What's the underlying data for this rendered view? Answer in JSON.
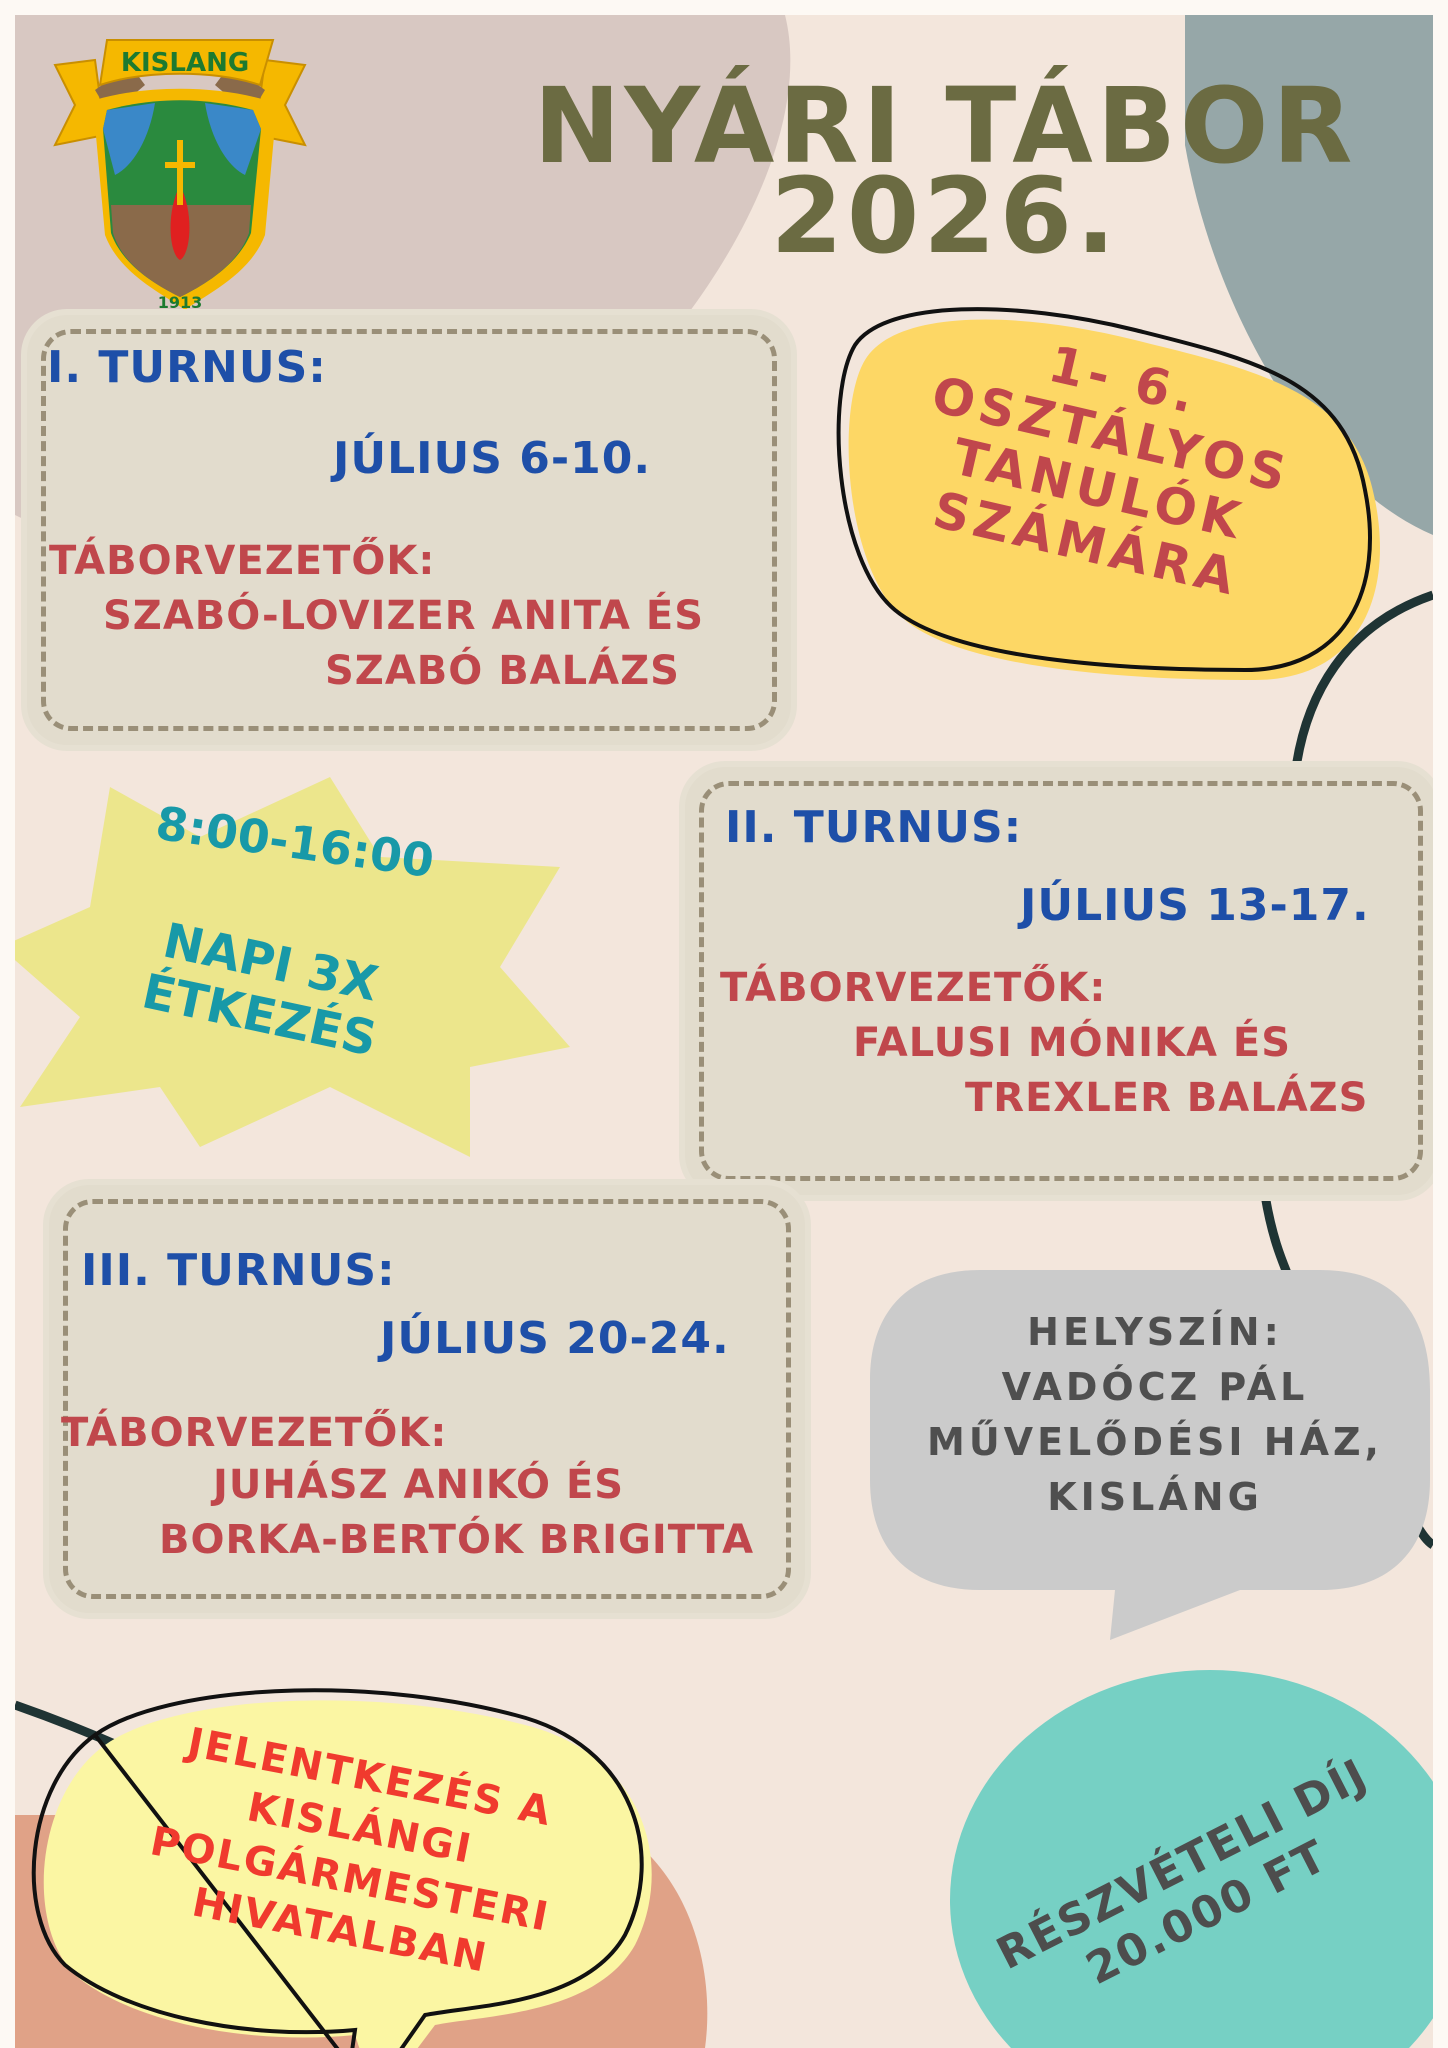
{
  "logo": {
    "banner": "KISLANG",
    "year": "1913"
  },
  "header": {
    "title_line1": "NYÁRI TÁBOR",
    "title_line2": "2026."
  },
  "audience": {
    "lines": [
      "1- 6.",
      "OSZTÁLYOS",
      "TANULÓK",
      "SZÁMÁRA"
    ]
  },
  "sessions": [
    {
      "title": "I. TURNUS:",
      "dates": "JÚLIUS  6-10.",
      "leaders_label": "TÁBORVEZETŐK:",
      "leaders": [
        "SZABÓ-LOVIZER ANITA ÉS",
        "SZABÓ BALÁZS"
      ]
    },
    {
      "title": "II. TURNUS:",
      "dates": "JÚLIUS  13-17.",
      "leaders_label": "TÁBORVEZETŐK:",
      "leaders": [
        "FALUSI MÓNIKA ÉS",
        "TREXLER BALÁZS"
      ]
    },
    {
      "title": "III. TURNUS:",
      "dates": "JÚLIUS  20-24.",
      "leaders_label": "TÁBORVEZETŐK:",
      "leaders": [
        "JUHÁSZ ANIKÓ ÉS",
        "BORKA-BERTÓK BRIGITTA"
      ]
    }
  ],
  "schedule": {
    "hours": "8:00-16:00",
    "meals_line1": "NAPI 3X",
    "meals_line2": "ÉTKEZÉS"
  },
  "location": {
    "lines": [
      "HELYSZÍN:",
      "VADÓCZ PÁL",
      "MŰVELŐDÉSI HÁZ,",
      "KISLÁNG"
    ]
  },
  "registration": {
    "lines": [
      "JELENTKEZÉS A",
      "KISLÁNGI",
      "POLGÁRMESTERI",
      "HIVATALBAN"
    ]
  },
  "fee": {
    "line1": "RÉSZVÉTELI DÍJ",
    "line2": "20.000 FT"
  },
  "colors": {
    "background": "#f3e6dc",
    "title": "#6b6b42",
    "blue_text": "#1e4fa8",
    "red_text": "#c0474c",
    "teal": "#76d0c4",
    "yellow": "#fdd765",
    "registration_red": "#f03a2e"
  }
}
